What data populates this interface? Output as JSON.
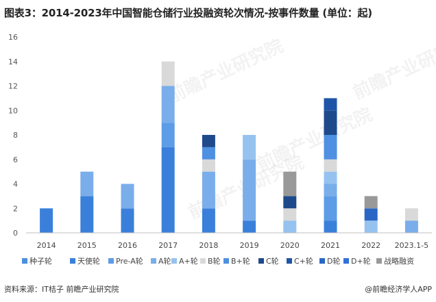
{
  "title": "图表3：2014-2023年中国智能仓储行业投融资轮次情况-按事件数量 (单位：起)",
  "source": "资料来源：IT桔子 前瞻产业研究院",
  "credit": "@前瞻经济学人APP",
  "watermark": "前瞻产业研究院",
  "colors": {
    "种子轮": "#4a8fe0",
    "天使轮": "#3a80db",
    "Pre-A轮": "#5d9ce6",
    "A轮": "#7aaeea",
    "A+轮": "#96c2f0",
    "B轮": "#d9d9d9",
    "B+轮": "#4e90e2",
    "C轮": "#1e4a8c",
    "C+轮": "#1f55a8",
    "D轮": "#2a66c4",
    "D+轮": "#2f72d9",
    "战略融资": "#999999"
  },
  "chart_data": {
    "type": "bar",
    "stacked": true,
    "categories": [
      "2014",
      "2015",
      "2016",
      "2017",
      "2018",
      "2019",
      "2020",
      "2021",
      "2022",
      "2023.1-5"
    ],
    "ylim": [
      0,
      16
    ],
    "yticks": [
      0,
      2,
      4,
      6,
      8,
      10,
      12,
      14,
      16
    ],
    "grid": false,
    "legend_position": "bottom",
    "series": [
      {
        "name": "种子轮",
        "values": [
          0,
          0,
          0,
          0,
          0,
          0,
          0,
          0,
          0,
          0
        ]
      },
      {
        "name": "天使轮",
        "values": [
          2,
          3,
          2,
          7,
          2,
          1,
          0,
          1,
          0,
          0
        ]
      },
      {
        "name": "Pre-A轮",
        "values": [
          0,
          0,
          0,
          2,
          0,
          0,
          0,
          2,
          0,
          0
        ]
      },
      {
        "name": "A轮",
        "values": [
          0,
          2,
          2,
          3,
          3,
          5,
          0,
          1,
          0,
          1
        ]
      },
      {
        "name": "A+轮",
        "values": [
          0,
          0,
          0,
          0,
          0,
          2,
          1,
          1,
          1,
          0
        ]
      },
      {
        "name": "B轮",
        "values": [
          0,
          0,
          0,
          2,
          1,
          0,
          1,
          1,
          0,
          1
        ]
      },
      {
        "name": "B+轮",
        "values": [
          0,
          0,
          0,
          0,
          1,
          0,
          0,
          2,
          0,
          0
        ]
      },
      {
        "name": "C轮",
        "values": [
          0,
          0,
          0,
          0,
          1,
          0,
          1,
          2,
          0,
          0
        ]
      },
      {
        "name": "C+轮",
        "values": [
          0,
          0,
          0,
          0,
          0,
          0,
          0,
          1,
          0,
          0
        ]
      },
      {
        "name": "D轮",
        "values": [
          0,
          0,
          0,
          0,
          0,
          0,
          0,
          0,
          1,
          0
        ]
      },
      {
        "name": "D+轮",
        "values": [
          0,
          0,
          0,
          0,
          0,
          0,
          0,
          0,
          0,
          0
        ]
      },
      {
        "name": "战略融资",
        "values": [
          0,
          0,
          0,
          0,
          0,
          0,
          2,
          0,
          1,
          0
        ]
      }
    ]
  }
}
